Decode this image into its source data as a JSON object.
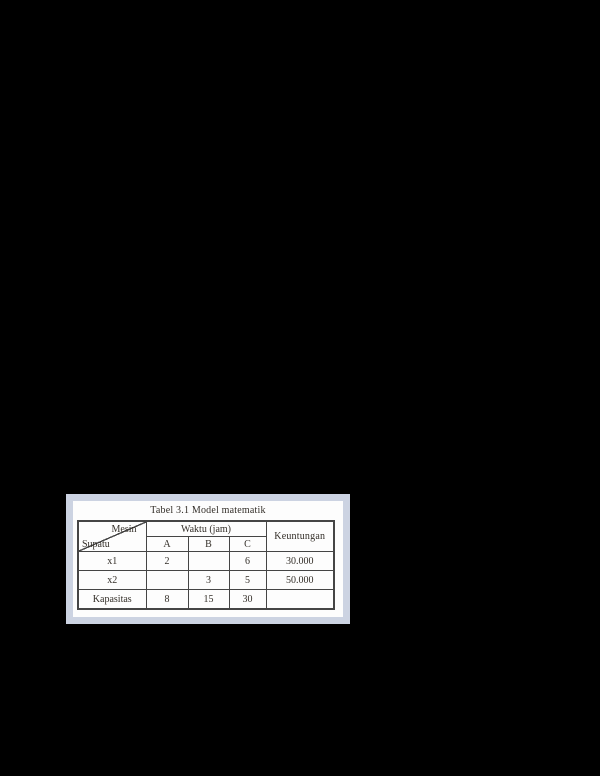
{
  "window": {
    "background_color": "#000000"
  },
  "figure": {
    "frame_color": "#ccd3e2",
    "paper_color": "#fdfdfd",
    "title": "Tabel 3.1 Model matematik"
  },
  "table": {
    "border_color": "#454545",
    "text_color": "#332e28",
    "corner": {
      "top_right": "Mesin",
      "bottom_left": "Supatu"
    },
    "time_group_header": "Waktu (jam)",
    "profit_header": "Keuntungan",
    "machine_columns": [
      "A",
      "B",
      "C"
    ],
    "rows": [
      {
        "cells": [
          "x1",
          "2",
          "",
          "6",
          "30.000"
        ]
      },
      {
        "cells": [
          "x2",
          "",
          "3",
          "5",
          "50.000"
        ]
      },
      {
        "cells": [
          "Kapasitas",
          "8",
          "15",
          "30",
          ""
        ]
      }
    ]
  }
}
